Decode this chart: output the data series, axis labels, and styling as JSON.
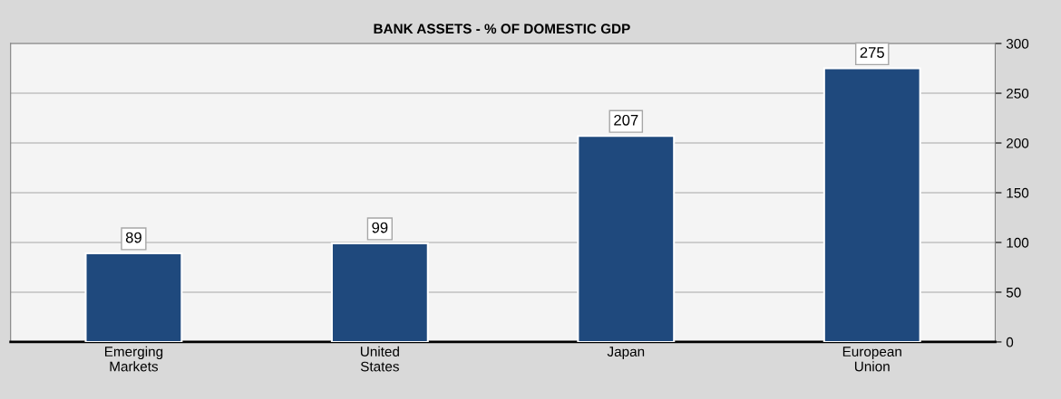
{
  "chart_data": {
    "type": "bar",
    "title": "BANK ASSETS - % OF DOMESTIC GDP",
    "categories": [
      "Emerging\nMarkets",
      "United\nStates",
      "Japan",
      "European\nUnion"
    ],
    "values": [
      89,
      99,
      207,
      275
    ],
    "color": "#1f497d",
    "ylim": [
      0,
      300
    ],
    "yticks": [
      0,
      50,
      100,
      150,
      200,
      250,
      300
    ],
    "grid": "y",
    "data_labels": true
  }
}
